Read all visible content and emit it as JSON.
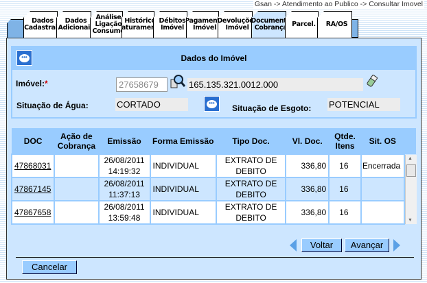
{
  "breadcrumb": "Gsan -> Atendimento ao Publico -> Consultar Imovel",
  "tabs": [
    {
      "l1": "Dados",
      "l2": "Cadastrais"
    },
    {
      "l1": "Dados",
      "l2": "Adicionais"
    },
    {
      "l1": "Análise",
      "l2": "Ligação",
      "l3": "Consumo"
    },
    {
      "l1": "Histórico",
      "l2": "Faturamento"
    },
    {
      "l1": "Débitos",
      "l2": "Imóvel"
    },
    {
      "l1": "Pagamento",
      "l2": "Imóvel"
    },
    {
      "l1": "Devoluções",
      "l2": "Imóvel"
    },
    {
      "l1": "Documento",
      "l2": "Cobrança"
    },
    {
      "l1": "Parcel."
    },
    {
      "l1": "RA/OS"
    }
  ],
  "active_tab": "Documento Cobrança",
  "dados": {
    "title": "Dados do Imóvel",
    "imovel_label": "Imóvel:",
    "required": "*",
    "imovel_value": "27658679",
    "inscricao": "165.135.321.0012.000",
    "agua_label": "Situação de Água:",
    "agua_value": "CORTADO",
    "esgoto_label": "Situação de Esgoto:",
    "esgoto_value": "POTENCIAL"
  },
  "table": {
    "headers": [
      "DOC",
      "Ação de Cobrança",
      "Emissão",
      "Forma Emissão",
      "Tipo Doc.",
      "Vl. Doc.",
      "Qtde. Itens",
      "Sit. OS"
    ],
    "rows": [
      {
        "doc": "47868031",
        "acao": "",
        "data": "26/08/2011",
        "hora": "14:19:32",
        "forma": "INDIVIDUAL",
        "tipo1": "EXTRATO DE",
        "tipo2": "DEBITO",
        "valor": "336,80",
        "qtde": "16",
        "sit": "Encerrada"
      },
      {
        "doc": "47867145",
        "acao": "",
        "data": "26/08/2011",
        "hora": "11:37:13",
        "forma": "INDIVIDUAL",
        "tipo1": "EXTRATO DE",
        "tipo2": "DEBITO",
        "valor": "336,80",
        "qtde": "16",
        "sit": ""
      },
      {
        "doc": "47867658",
        "acao": "",
        "data": "26/08/2011",
        "hora": "13:59:48",
        "forma": "INDIVIDUAL",
        "tipo1": "EXTRATO DE",
        "tipo2": "DEBITO",
        "valor": "336,80",
        "qtde": "16",
        "sit": ""
      }
    ]
  },
  "buttons": {
    "voltar": "Voltar",
    "avancar": "Avançar",
    "cancelar": "Cancelar"
  },
  "colors": {
    "header": "#99ccff",
    "panel": "#cde6ff",
    "button": "#99ccff"
  }
}
